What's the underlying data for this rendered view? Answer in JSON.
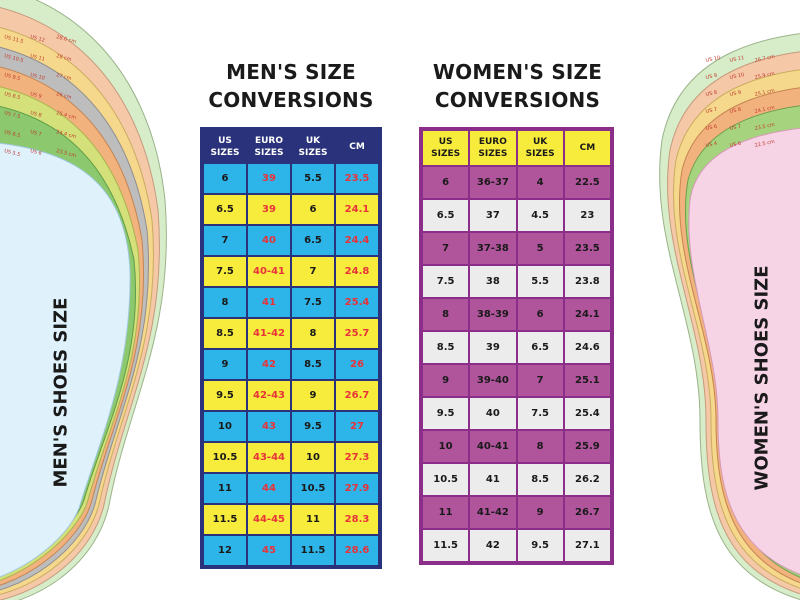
{
  "colors": {
    "men_header_bg": "#29327a",
    "men_row_blue": "#2db4e8",
    "men_row_yellow": "#f7ec3c",
    "men_value_red": "#e8333a",
    "women_border": "#8a2e8a",
    "women_header_bg": "#f7ec3c",
    "women_row_purple": "#b0549c",
    "women_row_grey": "#ececec",
    "men_insole_fill": "#dff1fb",
    "women_insole_fill": "#f7d3e6"
  },
  "men_title": [
    "MEN'S SIZE",
    "CONVERSIONS"
  ],
  "women_title": [
    "WOMEN'S SIZE",
    "CONVERSIONS"
  ],
  "men_label": "MEN'S SHOES SIZE",
  "women_label": "WOMEN'S SHOES SIZE",
  "men_insole_labels": [
    [
      "US 11.5",
      "US 12",
      "28.6 cm"
    ],
    [
      "US 10.5",
      "US 11",
      "28 cm"
    ],
    [
      "US 9.5",
      "US 10",
      "27 cm"
    ],
    [
      "US 8.5",
      "US 9",
      "26 cm"
    ],
    [
      "US 7.5",
      "US 8",
      "25.4 cm"
    ],
    [
      "US 6.5",
      "US 7",
      "24.4 cm"
    ],
    [
      "US 5.5",
      "US 6",
      "23.5 cm"
    ]
  ],
  "women_insole_labels": [
    [
      "US 10",
      "US 11",
      "26.7 cm"
    ],
    [
      "US 9",
      "US 10",
      "25.9 cm"
    ],
    [
      "US 8",
      "US 9",
      "25.1 cm"
    ],
    [
      "US 7",
      "US 8",
      "24.1 cm"
    ],
    [
      "US 6",
      "US 7",
      "23.5 cm"
    ],
    [
      "US 4",
      "US 6",
      "22.5 cm"
    ]
  ],
  "chart_data": [
    {
      "type": "table",
      "title": "MEN'S SIZE CONVERSIONS",
      "columns": [
        [
          "US",
          "SIZES"
        ],
        [
          "EURO",
          "SIZES"
        ],
        [
          "UK",
          "SIZES"
        ],
        [
          "CM"
        ]
      ],
      "rows": [
        [
          "6",
          "39",
          "5.5",
          "23.5"
        ],
        [
          "6.5",
          "39",
          "6",
          "24.1"
        ],
        [
          "7",
          "40",
          "6.5",
          "24.4"
        ],
        [
          "7.5",
          "40-41",
          "7",
          "24.8"
        ],
        [
          "8",
          "41",
          "7.5",
          "25.4"
        ],
        [
          "8.5",
          "41-42",
          "8",
          "25.7"
        ],
        [
          "9",
          "42",
          "8.5",
          "26"
        ],
        [
          "9.5",
          "42-43",
          "9",
          "26.7"
        ],
        [
          "10",
          "43",
          "9.5",
          "27"
        ],
        [
          "10.5",
          "43-44",
          "10",
          "27.3"
        ],
        [
          "11",
          "44",
          "10.5",
          "27.9"
        ],
        [
          "11.5",
          "44-45",
          "11",
          "28.3"
        ],
        [
          "12",
          "45",
          "11.5",
          "28.6"
        ]
      ]
    },
    {
      "type": "table",
      "title": "WOMEN'S SIZE CONVERSIONS",
      "columns": [
        [
          "US",
          "SIZES"
        ],
        [
          "EURO",
          "SIZES"
        ],
        [
          "UK",
          "SIZES"
        ],
        [
          "CM"
        ]
      ],
      "rows": [
        [
          "6",
          "36-37",
          "4",
          "22.5"
        ],
        [
          "6.5",
          "37",
          "4.5",
          "23"
        ],
        [
          "7",
          "37-38",
          "5",
          "23.5"
        ],
        [
          "7.5",
          "38",
          "5.5",
          "23.8"
        ],
        [
          "8",
          "38-39",
          "6",
          "24.1"
        ],
        [
          "8.5",
          "39",
          "6.5",
          "24.6"
        ],
        [
          "9",
          "39-40",
          "7",
          "25.1"
        ],
        [
          "9.5",
          "40",
          "7.5",
          "25.4"
        ],
        [
          "10",
          "40-41",
          "8",
          "25.9"
        ],
        [
          "10.5",
          "41",
          "8.5",
          "26.2"
        ],
        [
          "11",
          "41-42",
          "9",
          "26.7"
        ],
        [
          "11.5",
          "42",
          "9.5",
          "27.1"
        ]
      ]
    }
  ]
}
